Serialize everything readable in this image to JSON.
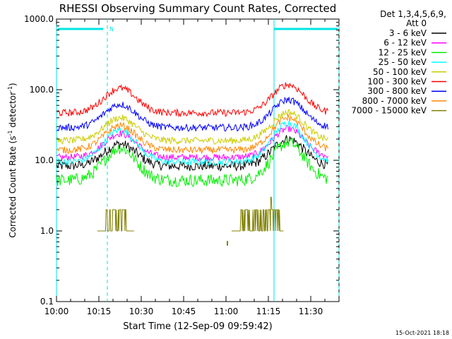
{
  "chart_data": {
    "type": "line",
    "title": "RHESSI Observing Summary Count Rates, Corrected",
    "xlabel": "Start Time (12-Sep-09 09:59:42)",
    "ylabel_main": "Corrected Count Rate (s",
    "ylabel_exp1": "-1",
    "ylabel_mid": " detector",
    "ylabel_exp2": "-1",
    "ylabel_end": ")",
    "y_scale": "log",
    "ylim": [
      0.1,
      1000
    ],
    "xlim_minutes": [
      0,
      100
    ],
    "x_ticks": [
      {
        "m": 0,
        "label": "10:00"
      },
      {
        "m": 15,
        "label": "10:15"
      },
      {
        "m": 30,
        "label": "10:30"
      },
      {
        "m": 45,
        "label": "10:45"
      },
      {
        "m": 60,
        "label": "11:00"
      },
      {
        "m": 75,
        "label": "11:15"
      },
      {
        "m": 90,
        "label": "11:30"
      }
    ],
    "y_ticks": [
      {
        "v": 1000,
        "label": "1000.0"
      },
      {
        "v": 100,
        "label": "100.0"
      },
      {
        "v": 10,
        "label": "10.0"
      },
      {
        "v": 1,
        "label": "1.0"
      },
      {
        "v": 0.1,
        "label": "0.1"
      }
    ],
    "legend_header": [
      "Det 1,3,4,5,6,9,",
      "Att 0"
    ],
    "legend_position": "right",
    "series": [
      {
        "name": "3 - 6 keV",
        "color": "#000000",
        "base": 8.3,
        "peak1": 17,
        "peak2": 20
      },
      {
        "name": "6 - 12 keV",
        "color": "#ff00ff",
        "base": 11,
        "peak1": 24,
        "peak2": 28
      },
      {
        "name": "12 - 25 keV",
        "color": "#00ee00",
        "base": 5.2,
        "peak1": 15,
        "peak2": 18
      },
      {
        "name": "25 - 50 keV",
        "color": "#00ffff",
        "base": 9.5,
        "peak1": 27,
        "peak2": 34
      },
      {
        "name": "50 - 100 keV",
        "color": "#cccc00",
        "base": 19,
        "peak1": 40,
        "peak2": 48
      },
      {
        "name": "100 - 300 keV",
        "color": "#ff0000",
        "base": 47,
        "peak1": 105,
        "peak2": 118
      },
      {
        "name": "300 - 800 keV",
        "color": "#0000ff",
        "base": 29,
        "peak1": 62,
        "peak2": 72
      },
      {
        "name": "800 - 7000 keV",
        "color": "#ff8800",
        "base": 14,
        "peak1": 31,
        "peak2": 40
      },
      {
        "name": "7000 - 15000 keV",
        "color": "#808000",
        "base": 1.0,
        "peak1": 2.0,
        "peak2": 2.0
      }
    ],
    "saa_intervals_minutes": [
      [
        0,
        18
      ],
      [
        77,
        100
      ]
    ],
    "saa_label": "N",
    "timestamp": "15-Oct-2021 18:18"
  }
}
